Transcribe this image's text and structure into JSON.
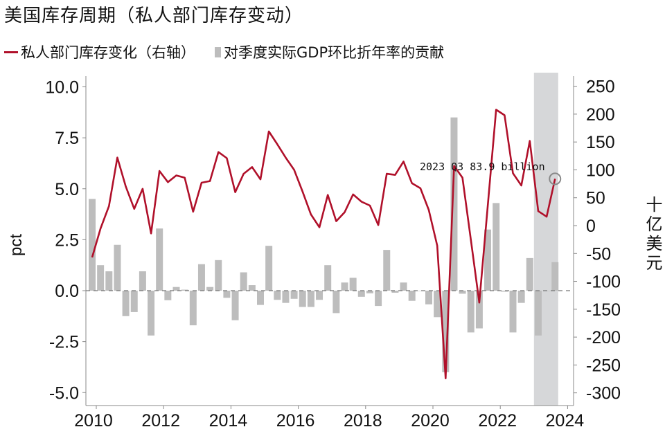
{
  "chart_data": {
    "type": "bar+line",
    "title": "美国库存周期（私人部门库存变动）",
    "legend": [
      "私人部门库存变化（右轴）",
      "对季度实际GDP环比折年率的贡献"
    ],
    "legend_placement": "top",
    "ylabel_left": "pct",
    "ylabel_right": "十亿美元",
    "ylim_left": [
      -5.5,
      10.5
    ],
    "ylim_right": [
      -310,
      262
    ],
    "yticks_left": [
      "10.0",
      "7.5",
      "5.0",
      "2.5",
      "0.0",
      "-2.5",
      "-5.0"
    ],
    "yticks_left_values": [
      10,
      7.5,
      5,
      2.5,
      0,
      -2.5,
      -5
    ],
    "yticks_right": [
      "250",
      "200",
      "150",
      "100",
      "50",
      "0",
      "-50",
      "-100",
      "-150",
      "-200",
      "-250",
      "-300"
    ],
    "yticks_right_values": [
      250,
      200,
      150,
      100,
      50,
      0,
      -50,
      -100,
      -150,
      -200,
      -250,
      -300
    ],
    "xticks": [
      "2010",
      "2012",
      "2014",
      "2016",
      "2018",
      "2020",
      "2022",
      "2024"
    ],
    "xtick_years": [
      2010,
      2012,
      2014,
      2016,
      2018,
      2020,
      2022,
      2024
    ],
    "first_quarter": "2009Q4",
    "last_quarter": "2023Q3",
    "shaded_period": "2023",
    "series": [
      {
        "name": "对季度实际GDP环比折年率的贡献",
        "axis": "left",
        "type": "bar",
        "color": "#bdbdbd",
        "values": [
          4.5,
          1.25,
          0.95,
          2.25,
          -1.25,
          -1.05,
          0.95,
          -2.2,
          3.05,
          -0.47,
          0.18,
          0.05,
          -1.7,
          1.3,
          0.18,
          1.5,
          -0.35,
          -1.45,
          0.9,
          0.27,
          -0.7,
          2.2,
          -0.45,
          -0.6,
          -0.4,
          -0.8,
          -0.8,
          -0.45,
          1.25,
          -1.1,
          0.4,
          0.63,
          -0.3,
          -0.13,
          -0.75,
          2.0,
          -0.1,
          0.4,
          -0.5,
          0.0,
          -0.67,
          -1.3,
          -4.0,
          8.5,
          -0.15,
          -2.05,
          -1.85,
          3.0,
          4.3,
          -0.05,
          -2.05,
          -0.6,
          1.6,
          -2.2,
          0.0,
          1.4
        ]
      },
      {
        "name": "私人部门库存变化（右轴）",
        "axis": "right",
        "type": "line",
        "color": "#b0102a",
        "values": [
          -57,
          -5,
          35,
          122,
          70,
          30,
          66,
          -14,
          98,
          78,
          90,
          86,
          25,
          77,
          80,
          132,
          121,
          60,
          93,
          105,
          83,
          169,
          146,
          122,
          100,
          61,
          20,
          -3,
          55,
          8,
          24,
          56,
          43,
          36,
          1,
          93,
          91,
          115,
          76,
          67,
          28,
          -36,
          -274,
          107,
          86,
          -26,
          -138,
          35,
          208,
          198,
          94,
          72,
          152,
          26,
          16,
          83.9
        ]
      }
    ],
    "annotation": "2023 Q3 83.9 billion"
  }
}
